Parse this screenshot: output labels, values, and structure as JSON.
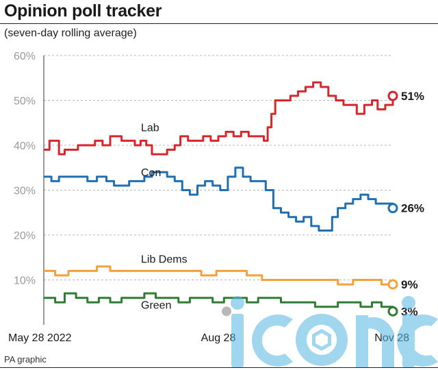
{
  "header": {
    "title": "Opinion poll tracker",
    "subtitle": "(seven-day rolling average)"
  },
  "footer": {
    "source": "PA graphic"
  },
  "watermark": {
    "text": "iconic"
  },
  "chart_data": {
    "type": "line",
    "title": "Opinion poll tracker",
    "subtitle": "(seven-day rolling average)",
    "xlabel": "",
    "ylabel": "",
    "ylim": [
      0,
      60
    ],
    "yticks": [
      10,
      20,
      30,
      40,
      50,
      60
    ],
    "ytick_labels": [
      "10%",
      "20%",
      "30%",
      "40%",
      "50%",
      "60%"
    ],
    "x_range": [
      "2022-05-28",
      "2022-11-28"
    ],
    "x_ticks": [
      {
        "date": "2022-05-28",
        "label": "May 28 2022"
      },
      {
        "date": "2022-08-28",
        "label": "Aug 28"
      },
      {
        "date": "2022-11-28",
        "label": "Nov 28"
      }
    ],
    "grid": "horizontal dashed",
    "series": [
      {
        "name": "Lab",
        "color": "#d9262c",
        "end_label": "51%",
        "points": [
          [
            "2022-05-28",
            39
          ],
          [
            "2022-05-31",
            41
          ],
          [
            "2022-06-03",
            41
          ],
          [
            "2022-06-05",
            38
          ],
          [
            "2022-06-08",
            39
          ],
          [
            "2022-06-12",
            39
          ],
          [
            "2022-06-15",
            40
          ],
          [
            "2022-06-20",
            40
          ],
          [
            "2022-06-24",
            41
          ],
          [
            "2022-06-28",
            40
          ],
          [
            "2022-07-02",
            42
          ],
          [
            "2022-07-08",
            41
          ],
          [
            "2022-07-12",
            41
          ],
          [
            "2022-07-15",
            40
          ],
          [
            "2022-07-18",
            41
          ],
          [
            "2022-07-21",
            40
          ],
          [
            "2022-07-24",
            38
          ],
          [
            "2022-07-28",
            38
          ],
          [
            "2022-08-01",
            39
          ],
          [
            "2022-08-05",
            40
          ],
          [
            "2022-08-08",
            42
          ],
          [
            "2022-08-12",
            41
          ],
          [
            "2022-08-16",
            41
          ],
          [
            "2022-08-20",
            42
          ],
          [
            "2022-08-24",
            41
          ],
          [
            "2022-08-28",
            42
          ],
          [
            "2022-09-01",
            43
          ],
          [
            "2022-09-05",
            42
          ],
          [
            "2022-09-09",
            43
          ],
          [
            "2022-09-13",
            42
          ],
          [
            "2022-09-17",
            42
          ],
          [
            "2022-09-21",
            41
          ],
          [
            "2022-09-23",
            44
          ],
          [
            "2022-09-25",
            47
          ],
          [
            "2022-09-27",
            50
          ],
          [
            "2022-10-01",
            50
          ],
          [
            "2022-10-05",
            51
          ],
          [
            "2022-10-09",
            52
          ],
          [
            "2022-10-13",
            53
          ],
          [
            "2022-10-17",
            54
          ],
          [
            "2022-10-21",
            53
          ],
          [
            "2022-10-25",
            51
          ],
          [
            "2022-10-29",
            50
          ],
          [
            "2022-11-02",
            49
          ],
          [
            "2022-11-06",
            49
          ],
          [
            "2022-11-09",
            47
          ],
          [
            "2022-11-13",
            49
          ],
          [
            "2022-11-17",
            50
          ],
          [
            "2022-11-20",
            48
          ],
          [
            "2022-11-24",
            49
          ],
          [
            "2022-11-28",
            51
          ]
        ]
      },
      {
        "name": "Con",
        "color": "#1f6fb4",
        "end_label": "26%",
        "points": [
          [
            "2022-05-28",
            33
          ],
          [
            "2022-06-01",
            32
          ],
          [
            "2022-06-05",
            33
          ],
          [
            "2022-06-10",
            33
          ],
          [
            "2022-06-15",
            33
          ],
          [
            "2022-06-20",
            32
          ],
          [
            "2022-06-25",
            33
          ],
          [
            "2022-06-30",
            32
          ],
          [
            "2022-07-04",
            31
          ],
          [
            "2022-07-08",
            31
          ],
          [
            "2022-07-12",
            32
          ],
          [
            "2022-07-16",
            32
          ],
          [
            "2022-07-20",
            33
          ],
          [
            "2022-07-24",
            34
          ],
          [
            "2022-07-28",
            34
          ],
          [
            "2022-08-01",
            33
          ],
          [
            "2022-08-05",
            32
          ],
          [
            "2022-08-09",
            30
          ],
          [
            "2022-08-13",
            29
          ],
          [
            "2022-08-17",
            31
          ],
          [
            "2022-08-21",
            32
          ],
          [
            "2022-08-25",
            31
          ],
          [
            "2022-08-29",
            30
          ],
          [
            "2022-09-02",
            33
          ],
          [
            "2022-09-06",
            35
          ],
          [
            "2022-09-10",
            33
          ],
          [
            "2022-09-14",
            32
          ],
          [
            "2022-09-18",
            32
          ],
          [
            "2022-09-22",
            30
          ],
          [
            "2022-09-26",
            26
          ],
          [
            "2022-09-30",
            25
          ],
          [
            "2022-10-04",
            24
          ],
          [
            "2022-10-08",
            23
          ],
          [
            "2022-10-12",
            24
          ],
          [
            "2022-10-16",
            22
          ],
          [
            "2022-10-20",
            21
          ],
          [
            "2022-10-24",
            21
          ],
          [
            "2022-10-27",
            24
          ],
          [
            "2022-10-30",
            26
          ],
          [
            "2022-11-03",
            27
          ],
          [
            "2022-11-07",
            28
          ],
          [
            "2022-11-11",
            29
          ],
          [
            "2022-11-15",
            28
          ],
          [
            "2022-11-19",
            27
          ],
          [
            "2022-11-23",
            27
          ],
          [
            "2022-11-28",
            26
          ]
        ]
      },
      {
        "name": "Lib Dems",
        "color": "#f5a03a",
        "end_label": "9%",
        "points": [
          [
            "2022-05-28",
            12
          ],
          [
            "2022-06-03",
            11
          ],
          [
            "2022-06-10",
            12
          ],
          [
            "2022-06-18",
            12
          ],
          [
            "2022-06-25",
            13
          ],
          [
            "2022-07-02",
            12
          ],
          [
            "2022-07-10",
            12
          ],
          [
            "2022-07-18",
            12
          ],
          [
            "2022-07-26",
            12
          ],
          [
            "2022-08-03",
            12
          ],
          [
            "2022-08-11",
            12
          ],
          [
            "2022-08-19",
            11
          ],
          [
            "2022-08-27",
            12
          ],
          [
            "2022-09-04",
            12
          ],
          [
            "2022-09-12",
            11
          ],
          [
            "2022-09-20",
            10
          ],
          [
            "2022-09-28",
            10
          ],
          [
            "2022-10-06",
            10
          ],
          [
            "2022-10-14",
            10
          ],
          [
            "2022-10-22",
            10
          ],
          [
            "2022-10-30",
            9
          ],
          [
            "2022-11-07",
            10
          ],
          [
            "2022-11-15",
            10
          ],
          [
            "2022-11-22",
            9
          ],
          [
            "2022-11-28",
            9
          ]
        ]
      },
      {
        "name": "Green",
        "color": "#2f7d32",
        "end_label": "3%",
        "points": [
          [
            "2022-05-28",
            6
          ],
          [
            "2022-06-03",
            5
          ],
          [
            "2022-06-08",
            7
          ],
          [
            "2022-06-14",
            6
          ],
          [
            "2022-06-20",
            5
          ],
          [
            "2022-06-26",
            6
          ],
          [
            "2022-07-02",
            5
          ],
          [
            "2022-07-08",
            6
          ],
          [
            "2022-07-14",
            6
          ],
          [
            "2022-07-20",
            7
          ],
          [
            "2022-07-26",
            6
          ],
          [
            "2022-08-01",
            6
          ],
          [
            "2022-08-07",
            5
          ],
          [
            "2022-08-13",
            6
          ],
          [
            "2022-08-19",
            6
          ],
          [
            "2022-08-25",
            5
          ],
          [
            "2022-08-31",
            6
          ],
          [
            "2022-09-06",
            6
          ],
          [
            "2022-09-12",
            5
          ],
          [
            "2022-09-18",
            6
          ],
          [
            "2022-09-24",
            6
          ],
          [
            "2022-09-30",
            5
          ],
          [
            "2022-10-06",
            5
          ],
          [
            "2022-10-12",
            5
          ],
          [
            "2022-10-18",
            4
          ],
          [
            "2022-10-24",
            4
          ],
          [
            "2022-10-30",
            5
          ],
          [
            "2022-11-05",
            5
          ],
          [
            "2022-11-11",
            4
          ],
          [
            "2022-11-17",
            5
          ],
          [
            "2022-11-22",
            4
          ],
          [
            "2022-11-28",
            3
          ]
        ]
      }
    ]
  }
}
